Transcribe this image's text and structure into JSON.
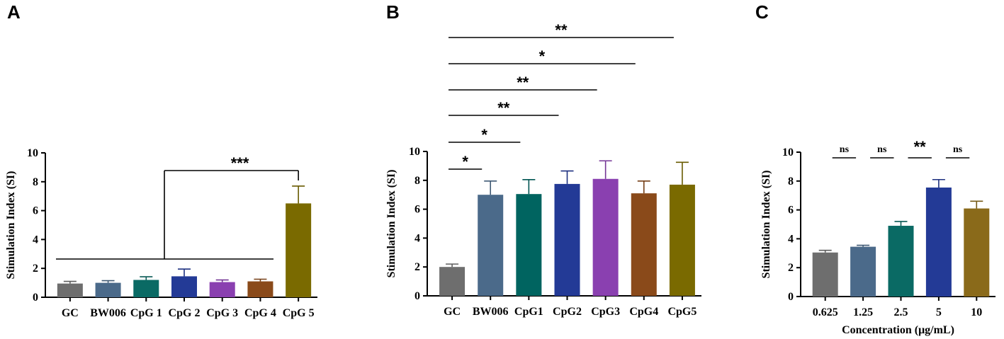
{
  "panels": {
    "A": "A",
    "B": "B",
    "C": "C"
  },
  "chart_data": [
    {
      "type": "bar",
      "panel": "A",
      "title": "",
      "xlabel": "",
      "ylabel": "Stimulation Index (SI)",
      "ylim": [
        0,
        10
      ],
      "yticks": [
        "0",
        "2",
        "4",
        "6",
        "8",
        "10"
      ],
      "categories": [
        "GC",
        "BW006",
        "CpG 1",
        "CpG 2",
        "CpG 3",
        "CpG 4",
        "CpG 5"
      ],
      "values": [
        0.95,
        1.0,
        1.2,
        1.45,
        1.05,
        1.1,
        6.5
      ],
      "errors": [
        0.15,
        0.15,
        0.22,
        0.5,
        0.15,
        0.15,
        1.2
      ],
      "colors": [
        "#6e6e6e",
        "#4b6a8a",
        "#0a6a64",
        "#233a96",
        "#8a40b0",
        "#8a4a1a",
        "#7a6a00"
      ],
      "annotations": [
        {
          "label": "***",
          "from_group": [
            "GC",
            "CpG 4"
          ],
          "to": "CpG 5"
        }
      ]
    },
    {
      "type": "bar",
      "panel": "B",
      "title": "",
      "xlabel": "",
      "ylabel": "Stimulation Index (SI)",
      "ylim": [
        0,
        10
      ],
      "yticks": [
        "0",
        "2",
        "4",
        "6",
        "8",
        "10"
      ],
      "categories": [
        "GC",
        "BW006",
        "CpG1",
        "CpG2",
        "CpG3",
        "CpG4",
        "CpG5"
      ],
      "values": [
        2.0,
        7.0,
        7.05,
        7.75,
        8.1,
        7.1,
        7.7
      ],
      "errors": [
        0.2,
        0.95,
        1.0,
        0.9,
        1.25,
        0.85,
        1.55
      ],
      "colors": [
        "#6e6e6e",
        "#4b6a8a",
        "#006460",
        "#233a96",
        "#8a40b0",
        "#8a4a1a",
        "#7a6a00"
      ],
      "annotations": [
        {
          "label": "*",
          "from": "GC",
          "to": "BW006"
        },
        {
          "label": "*",
          "from": "GC",
          "to": "CpG1"
        },
        {
          "label": "**",
          "from": "GC",
          "to": "CpG2"
        },
        {
          "label": "**",
          "from": "GC",
          "to": "CpG3"
        },
        {
          "label": "*",
          "from": "GC",
          "to": "CpG4"
        },
        {
          "label": "**",
          "from": "GC",
          "to": "CpG5"
        }
      ]
    },
    {
      "type": "bar",
      "panel": "C",
      "title": "",
      "xlabel": "Concentration (μg/mL)",
      "ylabel": "Stimulation Index (SI)",
      "ylim": [
        0,
        10
      ],
      "yticks": [
        "0",
        "2",
        "4",
        "6",
        "8",
        "10"
      ],
      "categories": [
        "0.625",
        "1.25",
        "2.5",
        "5",
        "10"
      ],
      "values": [
        3.05,
        3.45,
        4.9,
        7.55,
        6.1
      ],
      "errors": [
        0.15,
        0.1,
        0.3,
        0.55,
        0.5
      ],
      "colors": [
        "#6e6e6e",
        "#4b6a8a",
        "#0a6a64",
        "#233a96",
        "#8a6a1a"
      ],
      "annotations": [
        {
          "label": "ns",
          "between": [
            "0.625",
            "1.25"
          ]
        },
        {
          "label": "ns",
          "between": [
            "1.25",
            "2.5"
          ]
        },
        {
          "label": "**",
          "between": [
            "2.5",
            "5"
          ]
        },
        {
          "label": "ns",
          "between": [
            "5",
            "10"
          ]
        }
      ]
    }
  ]
}
